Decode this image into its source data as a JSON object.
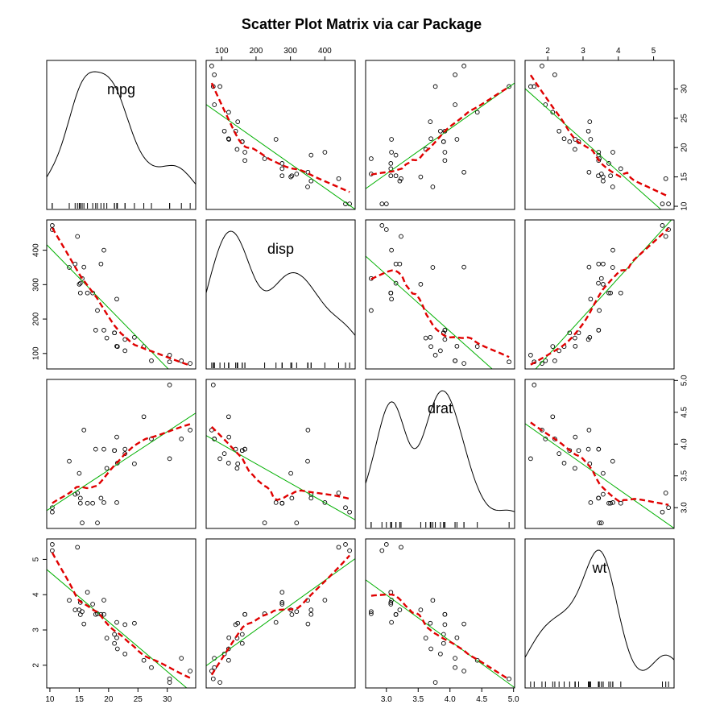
{
  "chart_data": {
    "type": "scatter",
    "title": "Scatter Plot Matrix via car Package",
    "variables": [
      "mpg",
      "disp",
      "drat",
      "wt"
    ],
    "ranges": {
      "mpg": [
        10.4,
        33.9
      ],
      "disp": [
        71.1,
        472
      ],
      "drat": [
        2.76,
        4.93
      ],
      "wt": [
        1.513,
        5.424
      ]
    },
    "ticks": {
      "mpg": [
        10,
        15,
        20,
        25,
        30
      ],
      "disp": [
        100,
        200,
        300,
        400
      ],
      "drat": [
        3.0,
        3.5,
        4.0,
        4.5,
        5.0
      ],
      "wt": [
        2,
        3,
        4,
        5
      ]
    },
    "tick_labels": {
      "mpg": [
        "10",
        "15",
        "20",
        "25",
        "30"
      ],
      "disp": [
        "100",
        "200",
        "300",
        "400"
      ],
      "drat": [
        "3.0",
        "3.5",
        "4.0",
        "4.5",
        "5.0"
      ],
      "wt": [
        "2",
        "3",
        "4",
        "5"
      ]
    },
    "side_ticks": {
      "mpg": [
        10,
        15,
        20,
        25,
        30
      ],
      "disp": [
        100,
        200,
        300,
        400
      ],
      "drat": [
        3.0,
        3.5,
        4.0,
        4.5,
        5.0
      ],
      "wt": [
        2,
        3,
        4,
        5
      ]
    },
    "side_tick_labels": {
      "mpg": [
        "10",
        "15",
        "20",
        "25",
        "30"
      ],
      "disp": [
        "100",
        "200",
        "300",
        "400"
      ],
      "drat": [
        "3.0",
        "3.5",
        "4.0",
        "4.5",
        "5.0"
      ],
      "wt": [
        "2",
        "3",
        "4",
        "5"
      ]
    },
    "observations": {
      "mpg": [
        21.0,
        21.0,
        22.8,
        21.4,
        18.7,
        18.1,
        14.3,
        24.4,
        22.8,
        19.2,
        17.8,
        16.4,
        17.3,
        15.2,
        10.4,
        10.4,
        14.7,
        32.4,
        30.4,
        33.9,
        21.5,
        15.5,
        15.2,
        13.3,
        19.2,
        27.3,
        26.0,
        30.4,
        15.8,
        19.7,
        15.0,
        21.4
      ],
      "disp": [
        160,
        160,
        108,
        258,
        360,
        225,
        360,
        146.7,
        140.8,
        167.6,
        167.6,
        275.8,
        275.8,
        275.8,
        472,
        460,
        440,
        78.7,
        75.7,
        71.1,
        120.1,
        318,
        304,
        350,
        400,
        79,
        120.3,
        95.1,
        351,
        145,
        301,
        121
      ],
      "drat": [
        3.9,
        3.9,
        3.85,
        3.08,
        3.15,
        2.76,
        3.21,
        3.69,
        3.92,
        3.92,
        3.92,
        3.07,
        3.07,
        3.07,
        2.93,
        3.0,
        3.23,
        4.08,
        4.93,
        4.22,
        3.7,
        2.76,
        3.15,
        3.73,
        3.08,
        4.08,
        4.43,
        3.77,
        4.22,
        3.62,
        3.54,
        4.11
      ],
      "wt": [
        2.62,
        2.875,
        2.32,
        3.215,
        3.44,
        3.46,
        3.57,
        3.19,
        3.15,
        3.44,
        3.44,
        4.07,
        3.73,
        3.78,
        5.25,
        5.424,
        5.345,
        2.2,
        1.615,
        1.835,
        2.465,
        3.52,
        3.435,
        3.84,
        3.845,
        1.935,
        2.14,
        1.513,
        3.17,
        2.77,
        3.57,
        2.78
      ]
    },
    "series": [
      {
        "role": "points",
        "color": "#000000"
      },
      {
        "role": "linear-fit",
        "color": "#00b000"
      },
      {
        "role": "smooth",
        "color": "#e00000"
      }
    ],
    "diagonal": "density-with-rug",
    "grid": false,
    "legend": "none"
  }
}
